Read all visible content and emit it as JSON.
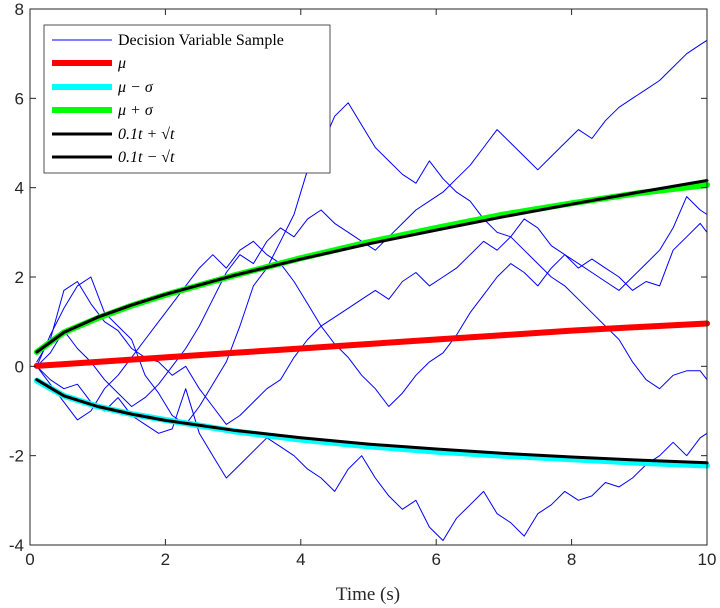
{
  "chart_data": {
    "type": "line",
    "title": "",
    "xlabel": "Time (s)",
    "ylabel": "",
    "xlim": [
      0,
      10
    ],
    "ylim": [
      -4,
      8
    ],
    "xticks": [
      "0",
      "2",
      "4",
      "6",
      "8",
      "10"
    ],
    "yticks": [
      "-4",
      "-2",
      "0",
      "2",
      "4",
      "6",
      "8"
    ],
    "grid": false,
    "legend_position": "top-left",
    "legend": [
      {
        "text": "Decision Variable Sample",
        "color": "#0000ff",
        "style": "thin"
      },
      {
        "text": "μ",
        "color": "#ff0000",
        "style": "thick"
      },
      {
        "text": "μ − σ",
        "color": "#00ffff",
        "style": "thick"
      },
      {
        "text": "μ + σ",
        "color": "#00ff00",
        "style": "thick"
      },
      {
        "text": "0.1t + √t",
        "color": "#000000",
        "style": "medium"
      },
      {
        "text": "0.1t − √t",
        "color": "#000000",
        "style": "medium"
      }
    ],
    "reference_x": [
      0.1,
      0.5,
      1,
      1.5,
      2,
      3,
      4,
      5,
      6,
      7,
      8,
      9,
      10
    ],
    "series_mean": [
      0.01,
      0.05,
      0.1,
      0.15,
      0.2,
      0.3,
      0.4,
      0.5,
      0.6,
      0.7,
      0.8,
      0.88,
      0.96
    ],
    "series_mu_minus_sigma": [
      -0.32,
      -0.66,
      -0.9,
      -1.07,
      -1.2,
      -1.45,
      -1.64,
      -1.79,
      -1.91,
      -2.0,
      -2.08,
      -2.16,
      -2.22
    ],
    "series_mu_plus_sigma": [
      0.32,
      0.76,
      1.08,
      1.36,
      1.6,
      2.03,
      2.42,
      2.78,
      3.1,
      3.4,
      3.65,
      3.88,
      4.06
    ],
    "series_upper_reference": [
      0.32,
      0.76,
      1.1,
      1.37,
      1.61,
      2.03,
      2.4,
      2.74,
      3.05,
      3.35,
      3.63,
      3.9,
      4.16
    ],
    "series_lower_reference": [
      -0.3,
      -0.66,
      -0.9,
      -1.07,
      -1.21,
      -1.43,
      -1.6,
      -1.74,
      -1.85,
      -1.95,
      -2.03,
      -2.1,
      -2.16
    ],
    "samples_x": [
      0.1,
      0.3,
      0.5,
      0.7,
      0.9,
      1.1,
      1.3,
      1.5,
      1.7,
      1.9,
      2.1,
      2.3,
      2.5,
      2.7,
      2.9,
      3.1,
      3.3,
      3.5,
      3.7,
      3.9,
      4.1,
      4.3,
      4.5,
      4.7,
      4.9,
      5.1,
      5.3,
      5.5,
      5.7,
      5.9,
      6.1,
      6.3,
      6.5,
      6.7,
      6.9,
      7.1,
      7.3,
      7.5,
      7.7,
      7.9,
      8.1,
      8.3,
      8.5,
      8.7,
      8.9,
      9.1,
      9.3,
      9.5,
      9.7,
      9.9,
      10
    ],
    "samples": [
      [
        0.0,
        -0.3,
        -0.5,
        -0.4,
        -0.8,
        -1.0,
        -0.7,
        -1.1,
        -1.3,
        -1.5,
        -1.4,
        -0.5,
        -1.5,
        -2.0,
        -2.5,
        -2.2,
        -1.9,
        -1.6,
        -1.8,
        -2.0,
        -2.3,
        -2.5,
        -2.8,
        -2.3,
        -2.0,
        -2.5,
        -2.9,
        -3.2,
        -3.0,
        -3.6,
        -3.9,
        -3.4,
        -3.1,
        -2.8,
        -3.3,
        -3.5,
        -3.8,
        -3.3,
        -3.1,
        -2.8,
        -3.0,
        -2.9,
        -2.6,
        -2.7,
        -2.5,
        -2.2,
        -2.0,
        -1.7,
        -2.0,
        -1.6,
        -1.5
      ],
      [
        0.1,
        0.6,
        1.7,
        1.9,
        1.4,
        1.0,
        0.8,
        0.4,
        0.2,
        0.1,
        -0.2,
        0.0,
        -0.5,
        -0.9,
        -1.3,
        -1.1,
        -0.8,
        -0.5,
        -0.3,
        0.2,
        0.6,
        0.9,
        1.1,
        1.3,
        1.5,
        1.7,
        1.5,
        1.9,
        2.1,
        1.8,
        2.0,
        2.2,
        2.5,
        2.8,
        2.6,
        2.9,
        3.3,
        3.1,
        2.7,
        2.5,
        2.2,
        2.4,
        2.2,
        2.0,
        1.7,
        1.9,
        1.8,
        2.6,
        2.9,
        3.2,
        3.0
      ],
      [
        0.0,
        0.7,
        1.3,
        1.8,
        2.0,
        1.2,
        0.9,
        0.6,
        -0.2,
        -0.6,
        -1.1,
        -1.3,
        -0.9,
        -0.4,
        0.1,
        0.9,
        1.8,
        2.2,
        2.8,
        3.4,
        4.4,
        4.9,
        5.6,
        5.9,
        5.4,
        4.9,
        4.6,
        4.3,
        4.1,
        4.6,
        4.2,
        3.9,
        3.7,
        3.3,
        3.0,
        2.9,
        2.6,
        2.3,
        2.0,
        1.8,
        1.5,
        1.2,
        0.9,
        0.6,
        0.1,
        -0.3,
        -0.5,
        -0.2,
        -0.1,
        -0.1,
        -0.3
      ],
      [
        0.0,
        -0.4,
        -0.8,
        -1.2,
        -1.0,
        -0.5,
        -0.2,
        0.2,
        0.6,
        1.0,
        1.4,
        1.8,
        2.2,
        2.5,
        2.2,
        2.6,
        2.8,
        2.5,
        2.3,
        1.9,
        1.4,
        0.9,
        0.5,
        0.2,
        -0.2,
        -0.5,
        -0.9,
        -0.6,
        -0.2,
        0.1,
        0.3,
        0.7,
        1.2,
        1.6,
        2.0,
        2.3,
        2.1,
        1.8,
        2.2,
        2.5,
        2.3,
        2.1,
        1.9,
        1.7,
        2.0,
        2.3,
        2.6,
        3.1,
        3.8,
        3.5,
        3.4
      ],
      [
        0.0,
        0.3,
        0.8,
        0.4,
        0.1,
        -0.3,
        -0.6,
        -0.9,
        -0.7,
        -0.4,
        0.0,
        0.4,
        0.9,
        1.5,
        2.1,
        2.5,
        2.3,
        2.8,
        3.1,
        2.9,
        3.3,
        3.5,
        3.2,
        3.0,
        2.8,
        2.6,
        2.9,
        3.2,
        3.5,
        3.7,
        3.9,
        4.2,
        4.5,
        4.9,
        5.3,
        5.0,
        4.7,
        4.4,
        4.7,
        5.0,
        5.3,
        5.1,
        5.5,
        5.8,
        6.0,
        6.2,
        6.4,
        6.7,
        7.0,
        7.2,
        7.3
      ]
    ]
  }
}
